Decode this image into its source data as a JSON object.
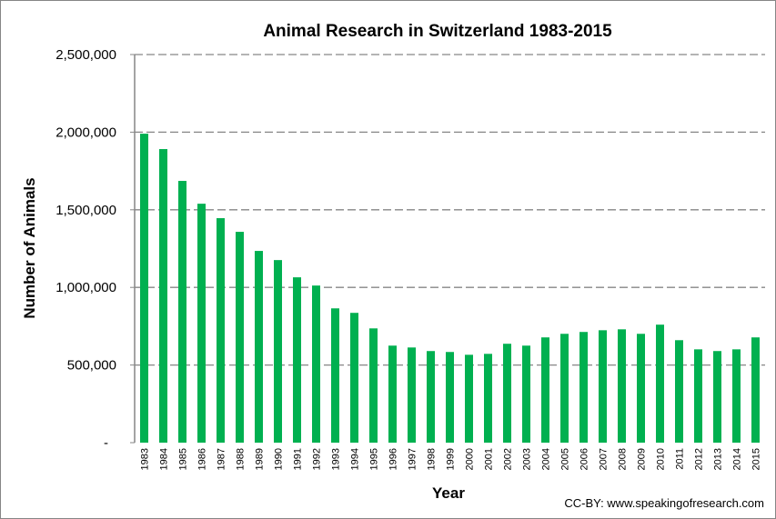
{
  "chart_data": {
    "type": "bar",
    "title": "Animal Research in Switzerland 1983-2015",
    "xlabel": "Year",
    "ylabel": "Number of Animals",
    "ylim": [
      0,
      2500000
    ],
    "yticks": [
      0,
      500000,
      1000000,
      1500000,
      2000000,
      2500000
    ],
    "ytick_labels": [
      "-",
      "500,000",
      "1,000,000",
      "1,500,000",
      "2,000,000",
      "2,500,000"
    ],
    "grid": true,
    "legend": "none",
    "color": "#00B050",
    "categories": [
      "1983",
      "1984",
      "1985",
      "1986",
      "1987",
      "1988",
      "1989",
      "1990",
      "1991",
      "1992",
      "1993",
      "1994",
      "1995",
      "1996",
      "1997",
      "1998",
      "1999",
      "2000",
      "2001",
      "2002",
      "2003",
      "2004",
      "2005",
      "2006",
      "2007",
      "2008",
      "2009",
      "2010",
      "2011",
      "2012",
      "2013",
      "2014",
      "2015"
    ],
    "values": [
      1990000,
      1891000,
      1686000,
      1539000,
      1446000,
      1358000,
      1235000,
      1176000,
      1065000,
      1012000,
      865000,
      836000,
      736000,
      625000,
      613000,
      590000,
      584000,
      566000,
      572000,
      637000,
      625000,
      678000,
      701000,
      713000,
      724000,
      730000,
      701000,
      760000,
      660000,
      601000,
      590000,
      601000,
      678000
    ]
  },
  "credit": "CC-BY: www.speakingofresearch.com"
}
